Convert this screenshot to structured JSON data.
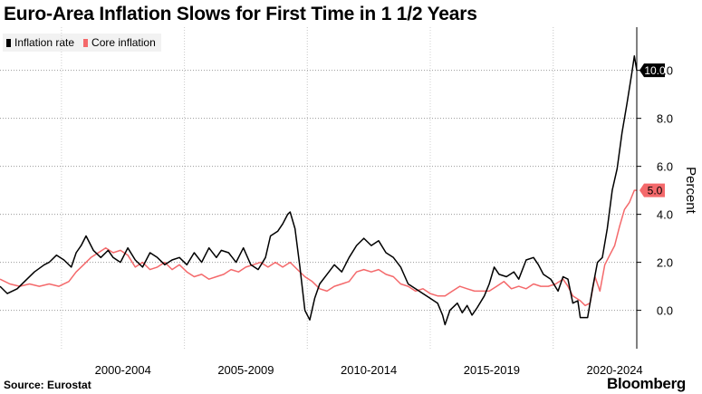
{
  "title": "Euro-Area Inflation Slows for First Time in 1 1/2 Years",
  "source": "Source: Eurostat",
  "brand": "Bloomberg",
  "chart_data": {
    "type": "line",
    "title": "Euro-Area Inflation Slows for First Time in 1 1/2 Years",
    "ylabel": "Percent",
    "xlabel": "",
    "ylim": [
      -1.6,
      11.8
    ],
    "xlim": [
      1997.0,
      2022.9
    ],
    "y_ticks": [
      0.0,
      2.0,
      4.0,
      6.0,
      8.0,
      10.0
    ],
    "y_tick_labels": [
      "0.0",
      "2.0",
      "4.0",
      "6.0",
      "8.0",
      "10.0"
    ],
    "x_ticks": [
      2002.0,
      2007.0,
      2012.0,
      2017.0,
      2022.0
    ],
    "x_tick_labels": [
      "2000-2004",
      "2005-2009",
      "2010-2014",
      "2015-2019",
      "2020-2024"
    ],
    "grid": true,
    "legend_position": "top-left",
    "series": [
      {
        "name": "Inflation rate",
        "color": "#000000",
        "end_label": "10.0",
        "points": [
          [
            1997.0,
            1.0
          ],
          [
            1997.3,
            0.7
          ],
          [
            1997.7,
            0.9
          ],
          [
            1998.0,
            1.2
          ],
          [
            1998.4,
            1.6
          ],
          [
            1998.8,
            1.9
          ],
          [
            1999.0,
            2.0
          ],
          [
            1999.3,
            2.3
          ],
          [
            1999.6,
            2.1
          ],
          [
            1999.9,
            1.8
          ],
          [
            2000.1,
            2.4
          ],
          [
            2000.3,
            2.7
          ],
          [
            2000.5,
            3.1
          ],
          [
            2000.8,
            2.5
          ],
          [
            2001.1,
            2.2
          ],
          [
            2001.4,
            2.5
          ],
          [
            2001.6,
            2.2
          ],
          [
            2001.9,
            2.0
          ],
          [
            2002.2,
            2.6
          ],
          [
            2002.5,
            2.1
          ],
          [
            2002.8,
            1.8
          ],
          [
            2003.1,
            2.4
          ],
          [
            2003.4,
            2.2
          ],
          [
            2003.7,
            1.9
          ],
          [
            2004.0,
            2.1
          ],
          [
            2004.3,
            2.2
          ],
          [
            2004.6,
            1.9
          ],
          [
            2004.9,
            2.4
          ],
          [
            2005.2,
            2.0
          ],
          [
            2005.5,
            2.6
          ],
          [
            2005.8,
            2.2
          ],
          [
            2006.0,
            2.5
          ],
          [
            2006.3,
            2.4
          ],
          [
            2006.6,
            2.0
          ],
          [
            2006.9,
            2.6
          ],
          [
            2007.2,
            1.9
          ],
          [
            2007.5,
            1.7
          ],
          [
            2007.8,
            2.2
          ],
          [
            2008.0,
            3.1
          ],
          [
            2008.3,
            3.3
          ],
          [
            2008.5,
            3.6
          ],
          [
            2008.7,
            4.0
          ],
          [
            2008.8,
            4.1
          ],
          [
            2009.0,
            3.4
          ],
          [
            2009.2,
            1.8
          ],
          [
            2009.4,
            0.0
          ],
          [
            2009.6,
            -0.4
          ],
          [
            2009.8,
            0.5
          ],
          [
            2010.0,
            1.1
          ],
          [
            2010.3,
            1.5
          ],
          [
            2010.6,
            1.9
          ],
          [
            2010.9,
            1.6
          ],
          [
            2011.2,
            2.2
          ],
          [
            2011.5,
            2.7
          ],
          [
            2011.8,
            3.0
          ],
          [
            2012.1,
            2.7
          ],
          [
            2012.4,
            2.9
          ],
          [
            2012.7,
            2.4
          ],
          [
            2013.0,
            2.2
          ],
          [
            2013.3,
            1.8
          ],
          [
            2013.6,
            1.1
          ],
          [
            2013.9,
            0.9
          ],
          [
            2014.2,
            0.7
          ],
          [
            2014.5,
            0.5
          ],
          [
            2014.8,
            0.3
          ],
          [
            2015.0,
            -0.2
          ],
          [
            2015.1,
            -0.6
          ],
          [
            2015.3,
            0.0
          ],
          [
            2015.6,
            0.3
          ],
          [
            2015.8,
            -0.1
          ],
          [
            2016.0,
            0.2
          ],
          [
            2016.2,
            -0.2
          ],
          [
            2016.4,
            0.1
          ],
          [
            2016.7,
            0.6
          ],
          [
            2016.9,
            1.1
          ],
          [
            2017.1,
            1.8
          ],
          [
            2017.3,
            1.5
          ],
          [
            2017.6,
            1.4
          ],
          [
            2017.9,
            1.6
          ],
          [
            2018.1,
            1.3
          ],
          [
            2018.4,
            2.1
          ],
          [
            2018.7,
            2.2
          ],
          [
            2018.9,
            1.9
          ],
          [
            2019.1,
            1.5
          ],
          [
            2019.4,
            1.3
          ],
          [
            2019.7,
            0.8
          ],
          [
            2019.9,
            1.4
          ],
          [
            2020.1,
            1.3
          ],
          [
            2020.3,
            0.3
          ],
          [
            2020.5,
            0.4
          ],
          [
            2020.6,
            -0.3
          ],
          [
            2020.9,
            -0.3
          ],
          [
            2021.1,
            0.9
          ],
          [
            2021.3,
            2.0
          ],
          [
            2021.5,
            2.2
          ],
          [
            2021.7,
            3.4
          ],
          [
            2021.9,
            5.0
          ],
          [
            2022.1,
            5.9
          ],
          [
            2022.3,
            7.4
          ],
          [
            2022.5,
            8.6
          ],
          [
            2022.7,
            9.9
          ],
          [
            2022.8,
            10.6
          ],
          [
            2022.9,
            10.0
          ]
        ]
      },
      {
        "name": "Core inflation",
        "color": "#f4696b",
        "end_label": "5.0",
        "points": [
          [
            1997.0,
            1.3
          ],
          [
            1997.4,
            1.1
          ],
          [
            1997.8,
            1.0
          ],
          [
            1998.2,
            1.1
          ],
          [
            1998.6,
            1.0
          ],
          [
            1999.0,
            1.1
          ],
          [
            1999.4,
            1.0
          ],
          [
            1999.8,
            1.2
          ],
          [
            2000.1,
            1.6
          ],
          [
            2000.4,
            1.9
          ],
          [
            2000.7,
            2.2
          ],
          [
            2001.0,
            2.4
          ],
          [
            2001.3,
            2.6
          ],
          [
            2001.6,
            2.4
          ],
          [
            2001.9,
            2.5
          ],
          [
            2002.2,
            2.3
          ],
          [
            2002.5,
            1.8
          ],
          [
            2002.8,
            2.0
          ],
          [
            2003.1,
            1.7
          ],
          [
            2003.4,
            1.8
          ],
          [
            2003.7,
            2.0
          ],
          [
            2004.0,
            1.7
          ],
          [
            2004.3,
            1.9
          ],
          [
            2004.6,
            1.6
          ],
          [
            2004.9,
            1.4
          ],
          [
            2005.2,
            1.5
          ],
          [
            2005.5,
            1.3
          ],
          [
            2005.8,
            1.4
          ],
          [
            2006.1,
            1.5
          ],
          [
            2006.4,
            1.7
          ],
          [
            2006.7,
            1.6
          ],
          [
            2007.0,
            1.8
          ],
          [
            2007.3,
            1.9
          ],
          [
            2007.6,
            2.0
          ],
          [
            2007.9,
            1.8
          ],
          [
            2008.2,
            2.0
          ],
          [
            2008.5,
            1.8
          ],
          [
            2008.8,
            2.0
          ],
          [
            2009.1,
            1.7
          ],
          [
            2009.4,
            1.4
          ],
          [
            2009.7,
            1.2
          ],
          [
            2010.0,
            0.9
          ],
          [
            2010.3,
            0.8
          ],
          [
            2010.6,
            1.0
          ],
          [
            2010.9,
            1.1
          ],
          [
            2011.2,
            1.2
          ],
          [
            2011.5,
            1.6
          ],
          [
            2011.8,
            1.7
          ],
          [
            2012.1,
            1.6
          ],
          [
            2012.4,
            1.7
          ],
          [
            2012.7,
            1.5
          ],
          [
            2013.0,
            1.4
          ],
          [
            2013.3,
            1.1
          ],
          [
            2013.6,
            1.0
          ],
          [
            2013.9,
            0.8
          ],
          [
            2014.2,
            0.9
          ],
          [
            2014.5,
            0.7
          ],
          [
            2014.8,
            0.6
          ],
          [
            2015.1,
            0.6
          ],
          [
            2015.4,
            0.8
          ],
          [
            2015.7,
            1.0
          ],
          [
            2016.0,
            0.9
          ],
          [
            2016.3,
            0.8
          ],
          [
            2016.6,
            0.8
          ],
          [
            2016.9,
            0.8
          ],
          [
            2017.2,
            1.0
          ],
          [
            2017.5,
            1.2
          ],
          [
            2017.8,
            0.9
          ],
          [
            2018.1,
            1.0
          ],
          [
            2018.4,
            0.9
          ],
          [
            2018.7,
            1.1
          ],
          [
            2019.0,
            1.0
          ],
          [
            2019.3,
            1.0
          ],
          [
            2019.6,
            1.1
          ],
          [
            2019.9,
            1.3
          ],
          [
            2020.1,
            1.0
          ],
          [
            2020.3,
            0.6
          ],
          [
            2020.6,
            0.4
          ],
          [
            2020.8,
            0.2
          ],
          [
            2021.0,
            0.3
          ],
          [
            2021.2,
            1.4
          ],
          [
            2021.4,
            0.8
          ],
          [
            2021.6,
            1.9
          ],
          [
            2021.8,
            2.3
          ],
          [
            2022.0,
            2.7
          ],
          [
            2022.2,
            3.5
          ],
          [
            2022.4,
            4.2
          ],
          [
            2022.6,
            4.5
          ],
          [
            2022.8,
            5.0
          ],
          [
            2022.9,
            5.0
          ]
        ]
      }
    ]
  }
}
